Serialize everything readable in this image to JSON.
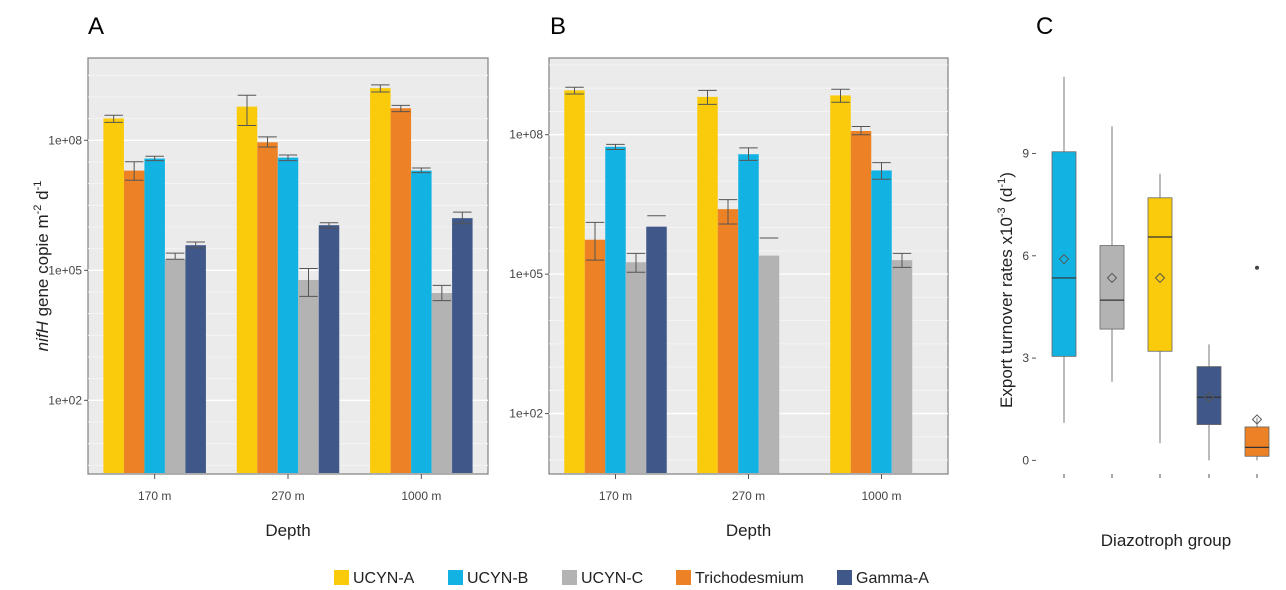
{
  "colors": {
    "UCYN-A": "#F9CB0A",
    "UCYN-B": "#12B3E2",
    "UCYN-C": "#B3B3B3",
    "Trichodesmium": "#EC8125",
    "Gamma-A": "#3F5889"
  },
  "legend": {
    "entries": [
      "UCYN-A",
      "UCYN-B",
      "UCYN-C",
      "Trichodesmium",
      "Gamma-A"
    ],
    "placement": "bottom"
  },
  "chart_data": [
    {
      "panel": "A",
      "type": "bar",
      "scale": "log10",
      "xlabel": "Depth",
      "ylabel_parts": [
        "nifH",
        " gene copie m",
        "-2",
        " d",
        "-1"
      ],
      "categories": [
        "170 m",
        "270 m",
        "1000 m"
      ],
      "yticks": [
        {
          "v": 100,
          "label": "1e+02"
        },
        {
          "v": 100000,
          "label": "1e+05"
        },
        {
          "v": 100000000,
          "label": "1e+08"
        }
      ],
      "ylim_log": [
        0.3,
        9.9
      ],
      "series": [
        {
          "name": "UCYN-A",
          "values": [
            320000000,
            600000000,
            1600000000
          ],
          "err": [
            [
              260000000,
              380000000
            ],
            [
              220000000,
              1100000000
            ],
            [
              1300000000,
              1900000000
            ]
          ]
        },
        {
          "name": "Trichodesmium",
          "values": [
            20000000,
            90000000,
            550000000
          ],
          "err": [
            [
              12000000,
              32000000
            ],
            [
              70000000,
              120000000
            ],
            [
              460000000,
              640000000
            ]
          ]
        },
        {
          "name": "UCYN-B",
          "values": [
            38000000,
            40000000,
            20000000
          ],
          "err": [
            [
              34000000,
              43000000
            ],
            [
              34000000,
              46000000
            ],
            [
              18000000,
              23000000
            ]
          ]
        },
        {
          "name": "UCYN-C",
          "values": [
            180000,
            60000,
            30000
          ],
          "err": [
            [
              180000,
              250000
            ],
            [
              25000,
              110000
            ],
            [
              20000,
              45000
            ]
          ]
        },
        {
          "name": "Gamma-A",
          "values": [
            380000,
            1100000,
            1600000
          ],
          "err": [
            [
              330000,
              450000
            ],
            [
              950000,
              1250000
            ],
            [
              1200000,
              2200000
            ]
          ]
        }
      ]
    },
    {
      "panel": "B",
      "type": "bar",
      "scale": "log10",
      "xlabel": "Depth",
      "categories": [
        "170 m",
        "270 m",
        "1000 m"
      ],
      "yticks": [
        {
          "v": 100,
          "label": "1e+02"
        },
        {
          "v": 100000,
          "label": "1e+05"
        },
        {
          "v": 100000000,
          "label": "1e+08"
        }
      ],
      "ylim_log": [
        0.7,
        9.65
      ],
      "series": [
        {
          "name": "UCYN-A",
          "values": [
            900000000,
            650000000,
            700000000
          ],
          "err": [
            [
              750000000,
              1050000000
            ],
            [
              450000000,
              900000000
            ],
            [
              500000000,
              950000000
            ]
          ]
        },
        {
          "name": "Trichodesmium",
          "values": [
            550000,
            2500000,
            120000000
          ],
          "err": [
            [
              200000,
              1300000
            ],
            [
              1200000,
              4000000
            ],
            [
              100000000,
              150000000
            ]
          ]
        },
        {
          "name": "UCYN-B",
          "values": [
            55000000,
            38000000,
            17000000
          ],
          "err": [
            [
              48000000,
              62000000
            ],
            [
              28000000,
              52000000
            ],
            [
              11000000,
              25000000
            ]
          ]
        },
        {
          "name": "UCYN-C",
          "values": [
            180000,
            250000,
            200000
          ],
          "err": [
            [
              110000,
              280000
            ],
            [
              600000,
              600000
            ],
            [
              140000,
              280000
            ]
          ]
        },
        {
          "name": "Gamma-A",
          "values": [
            1050000,
            null,
            null
          ],
          "err": [
            [
              1800000,
              1800000
            ],
            null,
            null
          ]
        }
      ]
    },
    {
      "panel": "C",
      "type": "box",
      "ylabel_parts": [
        "Export turnover rates x10",
        "-3",
        " (d",
        "-1",
        ")"
      ],
      "xlabel": "Diazotroph group",
      "yticks": [
        0,
        3,
        6,
        9
      ],
      "ylim": [
        -0.4,
        11.8
      ],
      "groups": [
        {
          "name": "UCYN-B",
          "min": 1.1,
          "q1": 3.05,
          "median": 5.35,
          "q3": 9.05,
          "max": 11.25,
          "mean": 5.9,
          "outliers": []
        },
        {
          "name": "UCYN-C",
          "min": 2.3,
          "q1": 3.85,
          "median": 4.7,
          "q3": 6.3,
          "max": 9.8,
          "mean": 5.35,
          "outliers": []
        },
        {
          "name": "UCYN-A",
          "min": 0.5,
          "q1": 3.2,
          "median": 6.55,
          "q3": 7.7,
          "max": 8.4,
          "mean": 5.35,
          "outliers": []
        },
        {
          "name": "Gamma-A",
          "min": 0.0,
          "q1": 1.05,
          "median": 1.85,
          "q3": 2.75,
          "max": 3.4,
          "mean": 1.85,
          "outliers": []
        },
        {
          "name": "Trichodesmium",
          "min": 0.0,
          "q1": 0.12,
          "median": 0.38,
          "q3": 0.98,
          "max": 1.25,
          "mean": 1.2,
          "outliers": [
            5.65
          ]
        }
      ]
    }
  ],
  "labels": {
    "panel_a": "A",
    "panel_b": "B",
    "panel_c": "C"
  }
}
